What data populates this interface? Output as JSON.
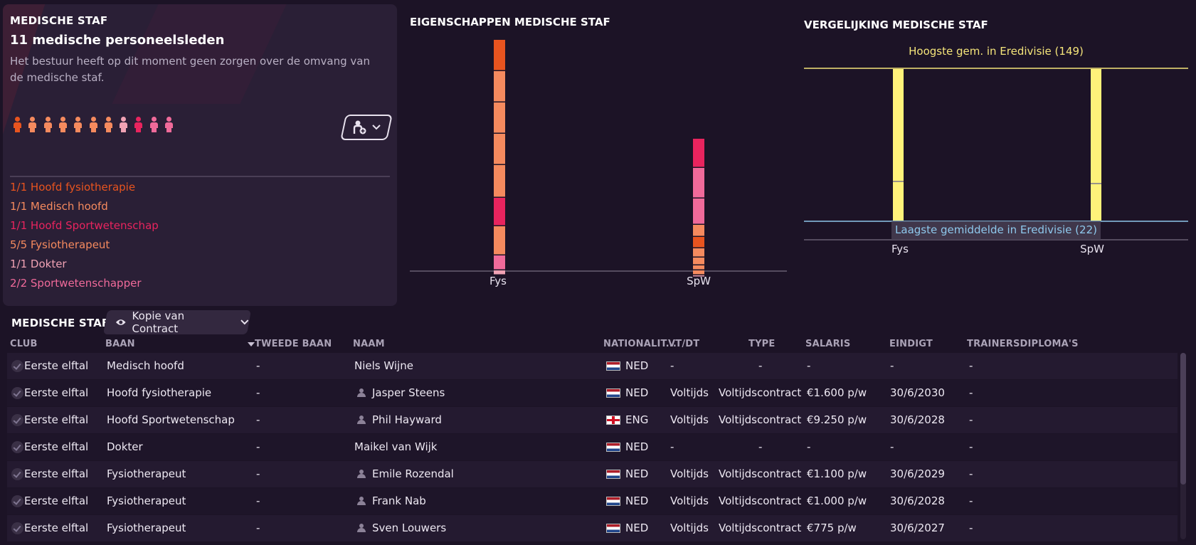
{
  "summary": {
    "heading": "MEDISCHE STAF",
    "count": "11 medische personeelsleden",
    "description": "Het bestuur heeft op dit moment geen zorgen over de omvang van de medische staf.",
    "person_icon_colors": [
      "#e8541f",
      "#f58a5e",
      "#f58a5e",
      "#f58a5e",
      "#f58a5e",
      "#f58a5e",
      "#f58a5e",
      "#f0a2b4",
      "#e8245e",
      "#f06a9a",
      "#f06a9a"
    ],
    "roles": [
      {
        "label": "1/1 Hoofd fysiotherapie",
        "color": "#e8541f"
      },
      {
        "label": "1/1 Medisch hoofd",
        "color": "#f58a5e"
      },
      {
        "label": "1/1 Hoofd Sportwetenschap",
        "color": "#e8245e"
      },
      {
        "label": "5/5 Fysiotherapeut",
        "color": "#f58a5e"
      },
      {
        "label": "1/1 Dokter",
        "color": "#f0a2b4"
      },
      {
        "label": "2/2 Sportwetenschapper",
        "color": "#f06a9a"
      }
    ]
  },
  "attributes_chart": {
    "title": "EIGENSCHAPPEN MEDISCHE STAF",
    "categories": [
      "Fys",
      "SpW"
    ]
  },
  "comparison_chart": {
    "title": "VERGELIJKING MEDISCHE STAF",
    "high_label": "Hoogste gem. in Eredivisie (149)",
    "low_label": "Laagste gemiddelde in Eredivisie (22)",
    "categories": [
      "Fys",
      "SpW"
    ]
  },
  "table": {
    "heading": "MEDISCHE STAF",
    "view_select": "Kopie van Contract",
    "columns": {
      "club": "CLUB",
      "baan": "BAAN",
      "tweede_baan": "TWEEDE BAAN",
      "naam": "NAAM",
      "nationaliteit": "NATIONALIT...",
      "vtdt": "VT/DT",
      "type": "TYPE",
      "salaris": "SALARIS",
      "eindigt": "EINDIGT",
      "diplomas": "TRAINERSDIPLOMA'S"
    },
    "rows": [
      {
        "club": "Eerste elftal",
        "baan": "Medisch hoofd",
        "tweede": "-",
        "naam": "Niels Wijne",
        "icon": false,
        "flag": "ned",
        "nat": "NED",
        "vtdt": "-",
        "type": "-",
        "salaris": "-",
        "eindigt": "-",
        "diplomas": "-"
      },
      {
        "club": "Eerste elftal",
        "baan": "Hoofd fysiotherapie",
        "tweede": "-",
        "naam": "Jasper Steens",
        "icon": true,
        "flag": "ned",
        "nat": "NED",
        "vtdt": "Voltijds",
        "type": "Voltijdscontract",
        "salaris": "€1.600 p/w",
        "eindigt": "30/6/2030",
        "diplomas": "-"
      },
      {
        "club": "Eerste elftal",
        "baan": "Hoofd Sportwetenschap",
        "tweede": "-",
        "naam": "Phil Hayward",
        "icon": true,
        "flag": "eng",
        "nat": "ENG",
        "vtdt": "Voltijds",
        "type": "Voltijdscontract",
        "salaris": "€9.250 p/w",
        "eindigt": "30/6/2028",
        "diplomas": "-"
      },
      {
        "club": "Eerste elftal",
        "baan": "Dokter",
        "tweede": "-",
        "naam": "Maikel van Wijk",
        "icon": false,
        "flag": "ned",
        "nat": "NED",
        "vtdt": "-",
        "type": "-",
        "salaris": "-",
        "eindigt": "-",
        "diplomas": "-"
      },
      {
        "club": "Eerste elftal",
        "baan": "Fysiotherapeut",
        "tweede": "-",
        "naam": "Emile Rozendal",
        "icon": true,
        "flag": "ned",
        "nat": "NED",
        "vtdt": "Voltijds",
        "type": "Voltijdscontract",
        "salaris": "€1.100 p/w",
        "eindigt": "30/6/2029",
        "diplomas": "-"
      },
      {
        "club": "Eerste elftal",
        "baan": "Fysiotherapeut",
        "tweede": "-",
        "naam": "Frank Nab",
        "icon": true,
        "flag": "ned",
        "nat": "NED",
        "vtdt": "Voltijds",
        "type": "Voltijdscontract",
        "salaris": "€1.000 p/w",
        "eindigt": "30/6/2028",
        "diplomas": "-"
      },
      {
        "club": "Eerste elftal",
        "baan": "Fysiotherapeut",
        "tweede": "-",
        "naam": "Sven Louwers",
        "icon": true,
        "flag": "ned",
        "nat": "NED",
        "vtdt": "Voltijds",
        "type": "Voltijdscontract",
        "salaris": "€775 p/w",
        "eindigt": "30/6/2027",
        "diplomas": "-"
      }
    ]
  }
}
